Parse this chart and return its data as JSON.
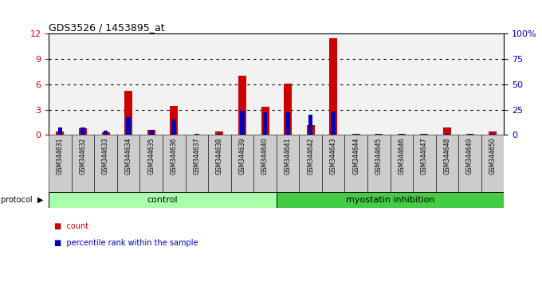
{
  "title": "GDS3526 / 1453895_at",
  "samples": [
    "GSM344631",
    "GSM344632",
    "GSM344633",
    "GSM344634",
    "GSM344635",
    "GSM344636",
    "GSM344637",
    "GSM344638",
    "GSM344639",
    "GSM344640",
    "GSM344641",
    "GSM344642",
    "GSM344643",
    "GSM344644",
    "GSM344645",
    "GSM344646",
    "GSM344647",
    "GSM344648",
    "GSM344649",
    "GSM344650"
  ],
  "red_values": [
    0.4,
    0.8,
    0.3,
    5.2,
    0.6,
    3.4,
    0.05,
    0.4,
    7.0,
    3.3,
    6.1,
    1.2,
    11.5,
    0.15,
    0.15,
    0.15,
    0.15,
    0.9,
    0.15,
    0.45
  ],
  "blue_values_pct": [
    7,
    7,
    4,
    18,
    5,
    15,
    1,
    1,
    24,
    22,
    22,
    20,
    23,
    1,
    1,
    1,
    1,
    1,
    1,
    1
  ],
  "control_count": 10,
  "ylim_left": [
    0,
    12
  ],
  "ylim_right": [
    0,
    100
  ],
  "yticks_left": [
    0,
    3,
    6,
    9,
    12
  ],
  "yticks_right": [
    0,
    25,
    50,
    75,
    100
  ],
  "grid_lines": [
    3,
    6,
    9
  ],
  "control_color": "#aaffaa",
  "myostatin_color": "#44cc44",
  "sample_box_color": "#cccccc",
  "plot_bg": "#ffffff",
  "red_color": "#cc0000",
  "blue_color": "#0000bb",
  "bar_width": 0.5
}
